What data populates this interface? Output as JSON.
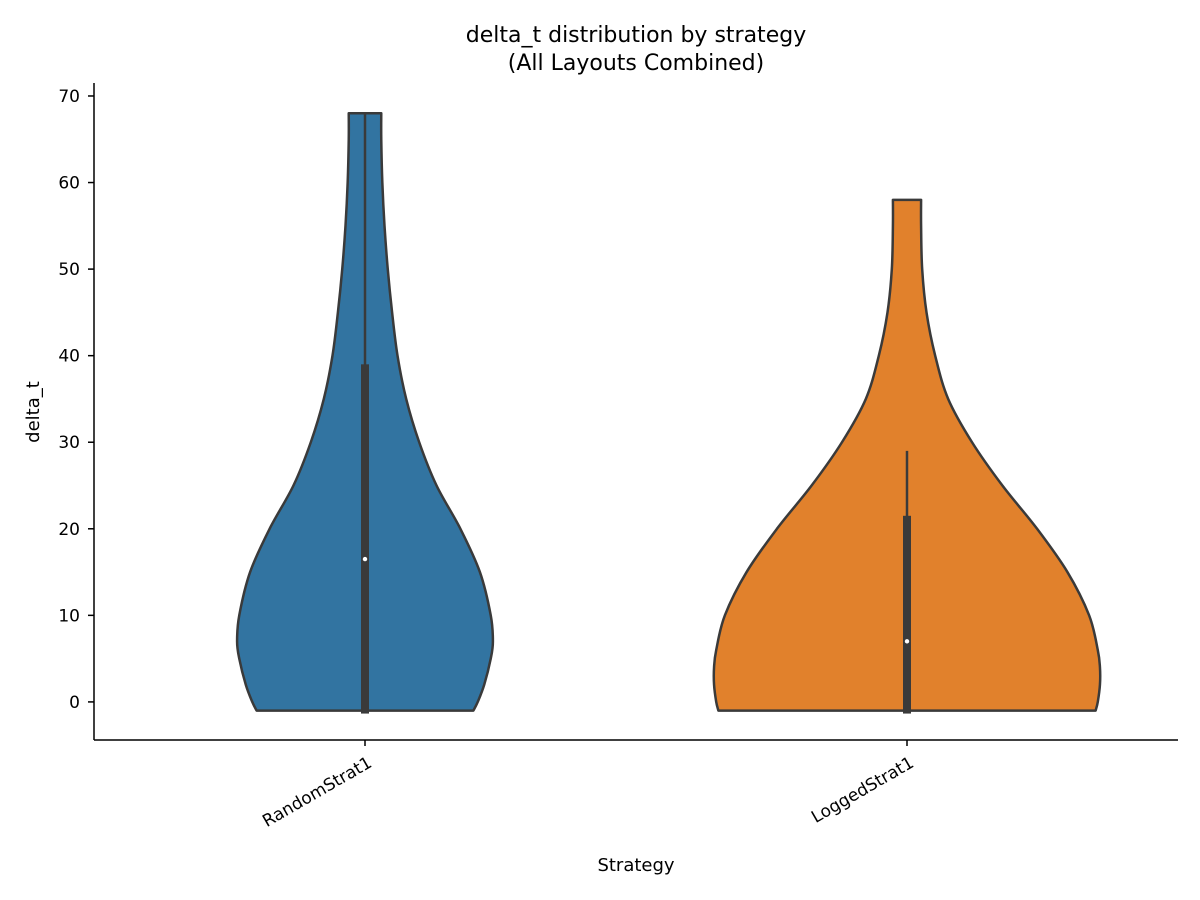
{
  "chart_data": {
    "type": "violin",
    "title": [
      "delta_t distribution by strategy",
      "(All Layouts Combined)"
    ],
    "xlabel": "Strategy",
    "ylabel": "delta_t",
    "ylim": [
      -4.4,
      71.5
    ],
    "yticks": [
      0,
      10,
      20,
      30,
      40,
      50,
      60,
      70
    ],
    "grid": false,
    "categories": [
      "RandomStrat1",
      "LoggedStrat1"
    ],
    "series": [
      {
        "category": "RandomStrat1",
        "color": "#3274a1",
        "min": -1,
        "max": 68,
        "q1": -1,
        "median": 16.5,
        "q3": 39,
        "whisker_low": -1,
        "whisker_high": 68,
        "density": [
          [
            -1,
            0.5
          ],
          [
            0,
            0.52
          ],
          [
            2,
            0.55
          ],
          [
            5,
            0.58
          ],
          [
            7,
            0.59
          ],
          [
            10,
            0.58
          ],
          [
            15,
            0.53
          ],
          [
            20,
            0.44
          ],
          [
            25,
            0.33
          ],
          [
            30,
            0.25
          ],
          [
            35,
            0.19
          ],
          [
            40,
            0.15
          ],
          [
            45,
            0.125
          ],
          [
            50,
            0.105
          ],
          [
            55,
            0.09
          ],
          [
            60,
            0.08
          ],
          [
            65,
            0.075
          ],
          [
            68,
            0.075
          ]
        ]
      },
      {
        "category": "LoggedStrat1",
        "color": "#e1812c",
        "min": -1,
        "max": 58,
        "q1": -1,
        "median": 7,
        "q3": 21.5,
        "whisker_low": -1,
        "whisker_high": 29,
        "density": [
          [
            -1,
            0.87
          ],
          [
            0,
            0.88
          ],
          [
            2,
            0.89
          ],
          [
            4,
            0.89
          ],
          [
            6,
            0.88
          ],
          [
            10,
            0.84
          ],
          [
            15,
            0.74
          ],
          [
            20,
            0.6
          ],
          [
            25,
            0.44
          ],
          [
            30,
            0.3
          ],
          [
            35,
            0.19
          ],
          [
            40,
            0.13
          ],
          [
            45,
            0.09
          ],
          [
            50,
            0.07
          ],
          [
            55,
            0.065
          ],
          [
            58,
            0.065
          ]
        ]
      }
    ]
  }
}
